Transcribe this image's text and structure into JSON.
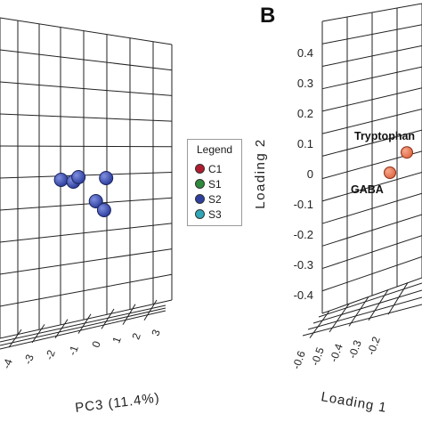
{
  "chart_data": [
    {
      "type": "scatter",
      "panel_label": "",
      "projection": "3d",
      "xlabel": "PC3 (11.4%)",
      "x_ticks": [
        "-4",
        "-3",
        "-2",
        "-1",
        "0",
        "1",
        "2",
        "3"
      ],
      "legend": {
        "title": "Legend",
        "placement": "right",
        "entries": [
          {
            "name": "C1",
            "color": "#b01c2e"
          },
          {
            "name": "S1",
            "color": "#2f8a3b"
          },
          {
            "name": "S2",
            "color": "#2e3f9e"
          },
          {
            "name": "S3",
            "color": "#2fa7b8"
          }
        ]
      },
      "series": [
        {
          "name": "S2",
          "color": "#2e3f9e",
          "points": [
            {
              "x": -3.6
            },
            {
              "x": -2.4
            },
            {
              "x": -1.9
            },
            {
              "x": 0.8
            },
            {
              "x": -0.2
            },
            {
              "x": 0.6
            }
          ]
        }
      ],
      "grid": true
    },
    {
      "type": "scatter",
      "panel_label": "B",
      "projection": "3d",
      "xlabel": "Loading 1",
      "ylabel": "Loading 2",
      "ylim": [
        -0.45,
        0.45
      ],
      "y_ticks": [
        "0.4",
        "0.3",
        "0.2",
        "0.1",
        "0",
        "-0.1",
        "-0.2",
        "-0.3",
        "-0.4"
      ],
      "x_ticks": [
        "-0.6",
        "-0.5",
        "-0.4",
        "-0.3",
        "-0.2"
      ],
      "series": [
        {
          "name": "",
          "color": "#e06a45",
          "points": [
            {
              "label": "Tryptophan",
              "y": 0.07
            },
            {
              "label": "GABA",
              "y": 0.0
            }
          ]
        }
      ],
      "grid": true
    }
  ]
}
